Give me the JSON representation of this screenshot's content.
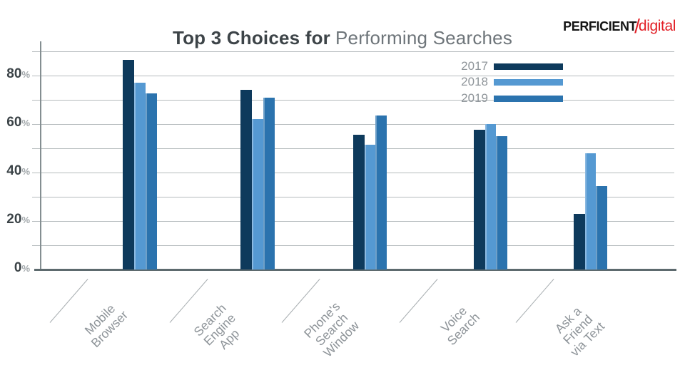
{
  "title": {
    "bold": "Top 3 Choices for",
    "light": "Performing Searches"
  },
  "logo": {
    "black": "PERFICIENT",
    "slash": "/",
    "red": "digital"
  },
  "chart_data": {
    "type": "bar",
    "title": "Top 3 Choices for Performing Searches",
    "categories": [
      "Mobile Browser",
      "Search Engine App",
      "Phone's Search Window",
      "Voice Search",
      "Ask a Friend via Text"
    ],
    "category_lines": [
      [
        "Mobile",
        "Browser"
      ],
      [
        "Search",
        "Engine",
        "App"
      ],
      [
        "Phone's",
        "Search",
        "Window"
      ],
      [
        "Voice",
        "Search"
      ],
      [
        "Ask a",
        "Friend",
        "via Text"
      ]
    ],
    "series": [
      {
        "name": "2017",
        "color": "#0e3a5c",
        "values": [
          86.5,
          74,
          55.5,
          57.5,
          23
        ]
      },
      {
        "name": "2018",
        "color": "#5599d2",
        "values": [
          77,
          62,
          51.5,
          60,
          48
        ]
      },
      {
        "name": "2019",
        "color": "#2b73ae",
        "values": [
          72.5,
          71,
          63.5,
          55,
          34.5
        ]
      }
    ],
    "xlabel": "",
    "ylabel": "",
    "y_tick_labels": [
      "0",
      "20",
      "40",
      "60",
      "80"
    ],
    "y_tick_suffix": "%",
    "ylim": [
      0,
      90
    ],
    "grid": "horizontal lines every 10%",
    "legend_position": "top-right-inside",
    "colors": {
      "gridline": "#b5bbbd",
      "axis": "#848e91",
      "baseline": "#5d6a6e",
      "tick_label": "#3b4347",
      "category_label": "#8d9398",
      "title_bold": "#3d4448",
      "title_light": "#6e757a",
      "logo_red": "#e21f26"
    }
  }
}
